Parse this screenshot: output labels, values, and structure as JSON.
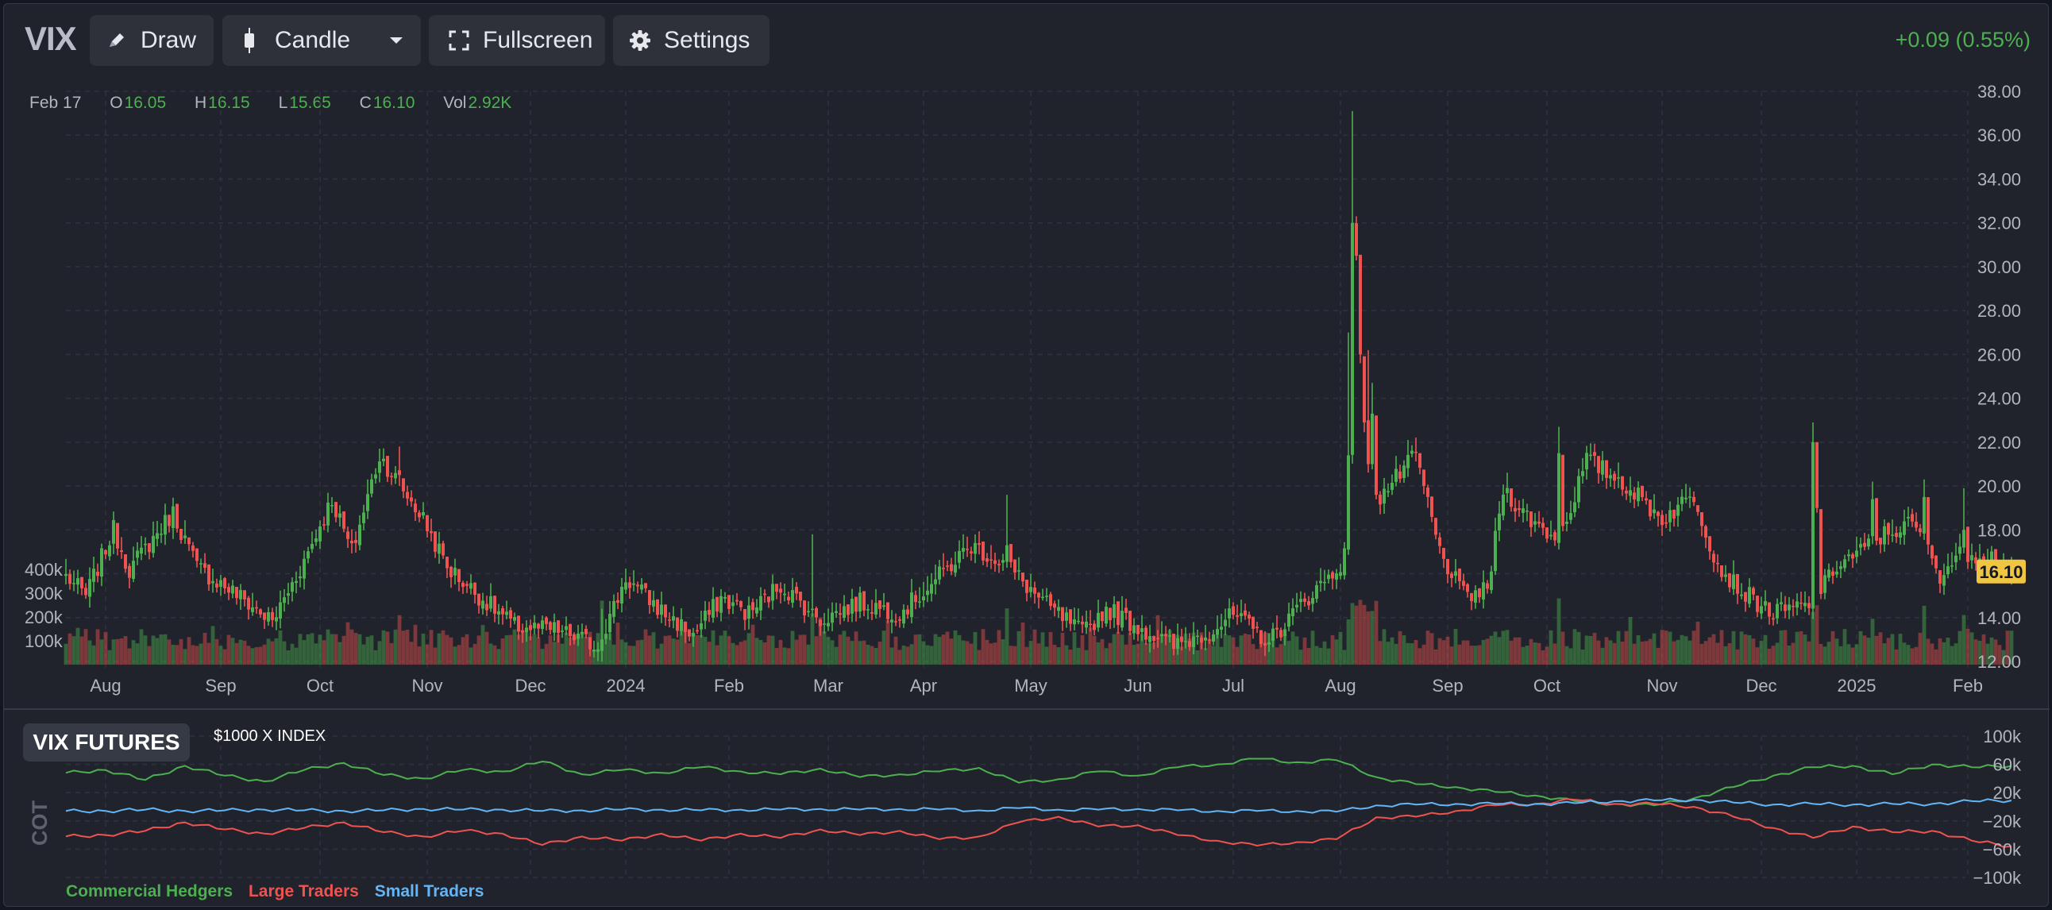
{
  "toolbar": {
    "symbol": "VIX",
    "draw_label": "Draw",
    "chart_type_label": "Candle",
    "fullscreen_label": "Fullscreen",
    "settings_label": "Settings"
  },
  "header": {
    "change": "+0.09 (0.55%)"
  },
  "ohlc": {
    "date": "Feb 17",
    "o_key": "O",
    "open": "16.05",
    "h_key": "H",
    "high": "16.15",
    "l_key": "L",
    "low": "15.65",
    "c_key": "C",
    "close": "16.10",
    "vol_key": "Vol",
    "volume": "2.92K"
  },
  "colors": {
    "up": "#4caf50",
    "down": "#ef5350",
    "small": "#64b5f6",
    "last_price_bg": "#f0c542",
    "grid": "#2f3340"
  },
  "lower_panel": {
    "badge": "VIX FUTURES",
    "multiplier": "$1000 X INDEX",
    "rotated_label": "COT"
  },
  "chart_data": [
    {
      "type": "candlestick",
      "title": "VIX",
      "price_axis": {
        "ylim": [
          12,
          38
        ],
        "ticks": [
          "38.00",
          "36.00",
          "34.00",
          "32.00",
          "30.00",
          "28.00",
          "26.00",
          "24.00",
          "22.00",
          "20.00",
          "18.00",
          "16.00",
          "14.00",
          "12.00"
        ]
      },
      "last_price": "16.10",
      "volume_axis": {
        "ticks": [
          "400k",
          "300k",
          "200k",
          "100k"
        ]
      },
      "x_ticks": [
        "Aug",
        "Sep",
        "Oct",
        "Nov",
        "Dec",
        "2024",
        "Feb",
        "Mar",
        "Apr",
        "May",
        "Jun",
        "Jul",
        "Aug",
        "Sep",
        "Oct",
        "Nov",
        "Dec",
        "2025",
        "Feb"
      ],
      "x_tick_index": [
        10,
        39,
        64,
        91,
        117,
        141,
        167,
        192,
        216,
        243,
        270,
        294,
        321,
        348,
        373,
        402,
        427,
        451,
        479
      ],
      "close_anchors": [
        [
          0,
          15.9
        ],
        [
          5,
          15.0
        ],
        [
          12,
          18.0
        ],
        [
          16,
          16.2
        ],
        [
          27,
          18.8
        ],
        [
          33,
          16.3
        ],
        [
          42,
          15.2
        ],
        [
          52,
          13.8
        ],
        [
          60,
          16.6
        ],
        [
          67,
          19.4
        ],
        [
          72,
          17.0
        ],
        [
          79,
          21.4
        ],
        [
          90,
          18.5
        ],
        [
          96,
          16.3
        ],
        [
          104,
          15.0
        ],
        [
          113,
          13.6
        ],
        [
          124,
          13.4
        ],
        [
          134,
          12.7
        ],
        [
          141,
          15.8
        ],
        [
          150,
          14.3
        ],
        [
          158,
          13.2
        ],
        [
          165,
          14.9
        ],
        [
          172,
          14.2
        ],
        [
          180,
          15.5
        ],
        [
          190,
          13.9
        ],
        [
          200,
          14.7
        ],
        [
          210,
          14.2
        ],
        [
          220,
          15.9
        ],
        [
          228,
          17.3
        ],
        [
          237,
          16.4
        ],
        [
          246,
          14.7
        ],
        [
          256,
          13.3
        ],
        [
          262,
          14.4
        ],
        [
          270,
          13.6
        ],
        [
          279,
          12.7
        ],
        [
          287,
          13.3
        ],
        [
          294,
          14.1
        ],
        [
          303,
          12.9
        ],
        [
          312,
          14.8
        ],
        [
          320,
          16.2
        ],
        [
          330,
          19.3
        ],
        [
          340,
          21.4
        ],
        [
          346,
          17.0
        ],
        [
          352,
          15.0
        ],
        [
          358,
          15.2
        ],
        [
          362,
          19.9
        ],
        [
          368,
          18.6
        ],
        [
          376,
          17.5
        ],
        [
          383,
          21.2
        ],
        [
          392,
          20.2
        ],
        [
          402,
          18.5
        ],
        [
          410,
          19.6
        ],
        [
          416,
          16.4
        ],
        [
          422,
          15.2
        ],
        [
          430,
          14.2
        ],
        [
          440,
          14.6
        ],
        [
          446,
          16.4
        ],
        [
          452,
          17.0
        ],
        [
          458,
          17.8
        ],
        [
          465,
          18.3
        ],
        [
          472,
          16.0
        ],
        [
          478,
          17.0
        ],
        [
          485,
          16.8
        ],
        [
          490,
          16.1
        ]
      ],
      "spikes": [
        {
          "i": 84,
          "close": 20.5,
          "high": 21.8
        },
        {
          "i": 135,
          "close": 13.0,
          "high": 14.4
        },
        {
          "i": 188,
          "close": 14.4,
          "high": 17.8
        },
        {
          "i": 237,
          "close": 17.3,
          "high": 19.6
        },
        {
          "i": 323,
          "close": 21.4,
          "high": 27.0
        },
        {
          "i": 324,
          "close": 32.0,
          "high": 37.1
        },
        {
          "i": 325,
          "close": 30.5,
          "high": 32.3
        },
        {
          "i": 326,
          "close": 26.0,
          "high": 28.0
        },
        {
          "i": 327,
          "close": 22.9,
          "high": 25.4
        },
        {
          "i": 328,
          "close": 21.0,
          "high": 26.2
        },
        {
          "i": 329,
          "close": 23.3,
          "high": 24.7
        },
        {
          "i": 330,
          "close": 19.6,
          "high": 22.5
        },
        {
          "i": 376,
          "close": 21.5,
          "high": 22.7
        },
        {
          "i": 440,
          "close": 22.0,
          "high": 22.9
        },
        {
          "i": 441,
          "close": 19.0,
          "high": 20.5
        },
        {
          "i": 455,
          "close": 19.4,
          "high": 20.2
        },
        {
          "i": 468,
          "close": 19.5,
          "high": 20.3
        },
        {
          "i": 478,
          "close": 18.0,
          "high": 19.9
        }
      ]
    },
    {
      "type": "line",
      "title": "COT",
      "ylim": [
        -100,
        100
      ],
      "y_ticks": [
        "100k",
        "60k",
        "20k",
        "−20k",
        "−60k",
        "−100k"
      ],
      "series": [
        {
          "name": "Commercial Hedgers",
          "color": "#4caf50",
          "x": [
            0,
            10,
            20,
            30,
            40,
            50,
            60,
            70,
            80,
            90,
            100,
            110,
            120,
            130,
            140,
            150,
            160,
            170,
            180,
            190,
            200,
            210,
            220,
            230,
            240,
            250,
            260,
            270,
            280,
            290,
            300,
            310,
            320,
            330,
            340,
            350,
            360,
            370,
            380,
            390,
            400,
            410,
            420,
            430,
            440,
            450,
            460,
            470,
            480,
            490
          ],
          "values": [
            48,
            52,
            38,
            58,
            44,
            36,
            52,
            62,
            45,
            40,
            52,
            50,
            64,
            46,
            52,
            48,
            56,
            50,
            46,
            54,
            42,
            46,
            50,
            55,
            34,
            39,
            50,
            44,
            56,
            60,
            68,
            63,
            66,
            42,
            32,
            28,
            21,
            16,
            8,
            4,
            2,
            12,
            28,
            44,
            56,
            58,
            46,
            60,
            56,
            58
          ]
        },
        {
          "name": "Large Traders",
          "color": "#ef5350",
          "x": [
            0,
            10,
            20,
            30,
            40,
            50,
            60,
            70,
            80,
            90,
            100,
            110,
            120,
            130,
            140,
            150,
            160,
            170,
            180,
            190,
            200,
            210,
            220,
            230,
            240,
            250,
            260,
            270,
            280,
            290,
            300,
            310,
            320,
            330,
            340,
            350,
            360,
            370,
            380,
            390,
            400,
            410,
            420,
            430,
            440,
            450,
            460,
            470,
            480,
            490
          ],
          "values": [
            -42,
            -40,
            -34,
            -22,
            -32,
            -38,
            -30,
            -22,
            -36,
            -42,
            -34,
            -38,
            -54,
            -42,
            -48,
            -38,
            -48,
            -38,
            -44,
            -32,
            -40,
            -34,
            -46,
            -42,
            -22,
            -14,
            -28,
            -26,
            -40,
            -48,
            -55,
            -50,
            -46,
            -15,
            -14,
            -6,
            2,
            4,
            10,
            4,
            4,
            0,
            -14,
            -30,
            -44,
            -28,
            -36,
            -34,
            -48,
            -56
          ]
        },
        {
          "name": "Small Traders",
          "color": "#64b5f6",
          "x": [
            0,
            10,
            20,
            30,
            40,
            50,
            60,
            70,
            80,
            90,
            100,
            110,
            120,
            130,
            140,
            150,
            160,
            170,
            180,
            190,
            200,
            210,
            220,
            230,
            240,
            250,
            260,
            270,
            280,
            290,
            300,
            310,
            320,
            330,
            340,
            350,
            360,
            370,
            380,
            390,
            400,
            410,
            420,
            430,
            440,
            450,
            460,
            470,
            480,
            490
          ],
          "values": [
            -6,
            -6,
            -4,
            -6,
            -5,
            -4,
            -5,
            -6,
            -5,
            -3,
            -4,
            -4,
            -6,
            -5,
            -4,
            -4,
            -5,
            -4,
            -4,
            -3,
            -4,
            -3,
            -4,
            -5,
            -2,
            -4,
            -4,
            -3,
            -5,
            -6,
            -6,
            -6,
            -7,
            2,
            3,
            4,
            4,
            4,
            5,
            8,
            9,
            10,
            6,
            3,
            4,
            3,
            4,
            4,
            8,
            9
          ]
        }
      ]
    }
  ]
}
